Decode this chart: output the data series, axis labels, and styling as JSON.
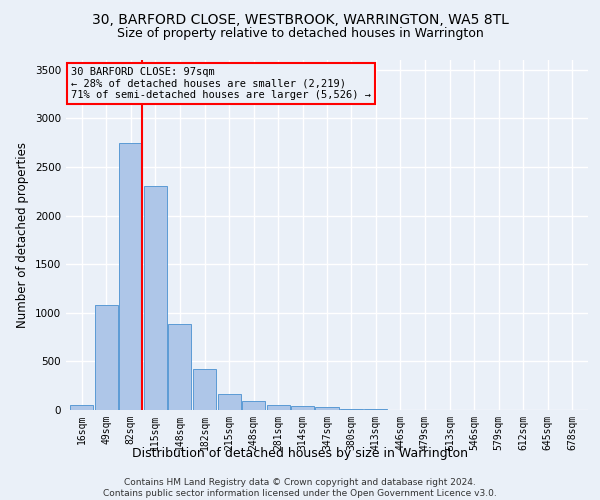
{
  "title": "30, BARFORD CLOSE, WESTBROOK, WARRINGTON, WA5 8TL",
  "subtitle": "Size of property relative to detached houses in Warrington",
  "xlabel": "Distribution of detached houses by size in Warrington",
  "ylabel": "Number of detached properties",
  "footer_line1": "Contains HM Land Registry data © Crown copyright and database right 2024.",
  "footer_line2": "Contains public sector information licensed under the Open Government Licence v3.0.",
  "annotation_line1": "30 BARFORD CLOSE: 97sqm",
  "annotation_line2": "← 28% of detached houses are smaller (2,219)",
  "annotation_line3": "71% of semi-detached houses are larger (5,526) →",
  "bar_color": "#aec6e8",
  "bar_edge_color": "#5b9bd5",
  "red_line_x": 97,
  "ylim": [
    0,
    3600
  ],
  "yticks": [
    0,
    500,
    1000,
    1500,
    2000,
    2500,
    3000,
    3500
  ],
  "categories": [
    "16sqm",
    "49sqm",
    "82sqm",
    "115sqm",
    "148sqm",
    "182sqm",
    "215sqm",
    "248sqm",
    "281sqm",
    "314sqm",
    "347sqm",
    "380sqm",
    "413sqm",
    "446sqm",
    "479sqm",
    "513sqm",
    "546sqm",
    "579sqm",
    "612sqm",
    "645sqm",
    "678sqm"
  ],
  "bin_edges": [
    16,
    49,
    82,
    115,
    148,
    182,
    215,
    248,
    281,
    314,
    347,
    380,
    413,
    446,
    479,
    513,
    546,
    579,
    612,
    645,
    678
  ],
  "values": [
    50,
    1080,
    2750,
    2300,
    880,
    420,
    160,
    90,
    55,
    40,
    30,
    15,
    8,
    4,
    2,
    1,
    0,
    0,
    0,
    0,
    0
  ],
  "background_color": "#eaf0f8",
  "plot_bg_color": "#eaf0f8",
  "grid_color": "#ffffff",
  "title_fontsize": 10,
  "subtitle_fontsize": 9,
  "axis_label_fontsize": 8.5,
  "tick_fontsize": 7.5,
  "footer_fontsize": 6.5
}
